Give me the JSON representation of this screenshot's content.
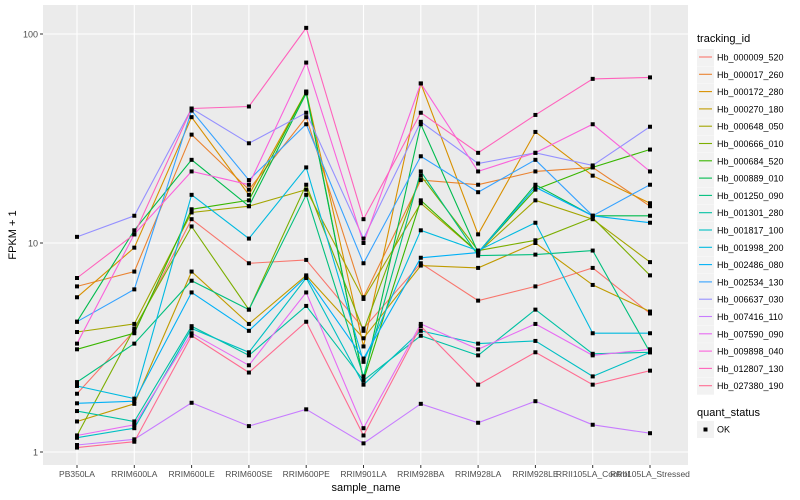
{
  "chart_data": {
    "type": "line",
    "xlabel": "sample_name",
    "ylabel": "FPKM + 1",
    "y_scale": "log10",
    "ylim": [
      0.97,
      130
    ],
    "y_ticks": [
      1,
      10,
      100
    ],
    "y_tick_labels": [
      "1",
      "10",
      "100"
    ],
    "grid": true,
    "legend_position": "right",
    "legend_title": "tracking_id",
    "point_legend_title": "quant_status",
    "point_legend_entries": [
      "OK"
    ],
    "point_color": "#000000",
    "panel_background": "#EBEBEB",
    "categories": [
      "PB350LA",
      "RRIM600LA",
      "RRIM600LE",
      "RRIM600SE",
      "RRIM600PE",
      "RRIM901LA",
      "RRIM928BA",
      "RRIM928LA",
      "RRIM928LE",
      "RRII105LA_Control",
      "RRII105LA_Stressed"
    ],
    "series": [
      {
        "name": "Hb_000009_520",
        "color": "#F8766D",
        "values": [
          1.9,
          3.8,
          13,
          8,
          8.3,
          3.9,
          8,
          5.3,
          6.2,
          7.6,
          4.6
        ]
      },
      {
        "name": "Hb_000017_260",
        "color": "#EA8331",
        "values": [
          6.2,
          7.3,
          33,
          18,
          40,
          5.5,
          20,
          19,
          22,
          23,
          15
        ]
      },
      {
        "name": "Hb_000172_280",
        "color": "#D89000",
        "values": [
          5.5,
          9.5,
          40,
          17,
          53,
          3.2,
          58,
          11,
          34,
          21,
          15.5
        ]
      },
      {
        "name": "Hb_000270_180",
        "color": "#C09B00",
        "values": [
          1.4,
          1.7,
          7.3,
          4.1,
          7,
          3.5,
          7.8,
          7.6,
          10,
          6.3,
          4.7
        ]
      },
      {
        "name": "Hb_000648_050",
        "color": "#A3A500",
        "values": [
          3.75,
          4.1,
          14,
          15,
          18,
          5.4,
          15.5,
          9,
          16,
          13,
          8.1
        ]
      },
      {
        "name": "Hb_000666_010",
        "color": "#7CAE00",
        "values": [
          1.2,
          3.9,
          12,
          4.8,
          19,
          3.8,
          21,
          9.2,
          10.3,
          13.2,
          7
        ]
      },
      {
        "name": "Hb_000684_520",
        "color": "#39B600",
        "values": [
          3.1,
          3.7,
          14.5,
          16,
          53,
          2.2,
          16,
          9,
          18,
          23,
          28
        ]
      },
      {
        "name": "Hb_000889_010",
        "color": "#00BB4E",
        "values": [
          4.2,
          11.5,
          25,
          15,
          52,
          2.2,
          37,
          9,
          19,
          13.5,
          13.5
        ]
      },
      {
        "name": "Hb_001250_090",
        "color": "#00BF7D",
        "values": [
          2.16,
          3.3,
          6.6,
          4.8,
          17,
          2.3,
          22,
          8.7,
          8.8,
          9.2,
          3
        ]
      },
      {
        "name": "Hb_001301_280",
        "color": "#00C1A3",
        "values": [
          1.57,
          1.4,
          4,
          2.9,
          5,
          2.2,
          3.6,
          2.9,
          4.8,
          2.95,
          3
        ]
      },
      {
        "name": "Hb_001817_100",
        "color": "#00BFC4",
        "values": [
          1.17,
          1.3,
          3.9,
          3,
          6.8,
          2.1,
          3.8,
          3.3,
          3.4,
          2.3,
          3
        ]
      },
      {
        "name": "Hb_001998_200",
        "color": "#00BAE0",
        "values": [
          2.07,
          1.8,
          17,
          10.5,
          23,
          2.7,
          11.5,
          9.2,
          12.5,
          3.7,
          3.7
        ]
      },
      {
        "name": "Hb_002486_080",
        "color": "#00B0F6",
        "values": [
          1.71,
          1.75,
          5.8,
          3.8,
          6.9,
          2.8,
          8.5,
          9,
          18.5,
          13.5,
          12.5
        ]
      },
      {
        "name": "Hb_002534_130",
        "color": "#35A2FF",
        "values": [
          4.2,
          6,
          43,
          20,
          37,
          8,
          26,
          17.5,
          25,
          13.5,
          19
        ]
      },
      {
        "name": "Hb_006637_030",
        "color": "#9590FF",
        "values": [
          10.7,
          13.5,
          44,
          30,
          42,
          10.5,
          38,
          24,
          27,
          23.5,
          36
        ]
      },
      {
        "name": "Hb_007416_110",
        "color": "#C77CFF",
        "values": [
          1.08,
          1.15,
          1.72,
          1.33,
          1.6,
          1.1,
          1.7,
          1.38,
          1.75,
          1.35,
          1.23
        ]
      },
      {
        "name": "Hb_007590_090",
        "color": "#E76BF3",
        "values": [
          1.2,
          1.35,
          3.7,
          2.6,
          5.8,
          1.3,
          4.1,
          3.1,
          4.1,
          2.9,
          3.1
        ]
      },
      {
        "name": "Hb_009898_040",
        "color": "#FA62DB",
        "values": [
          3.3,
          11,
          22,
          19,
          73,
          10,
          58,
          22,
          27,
          37,
          22
        ]
      },
      {
        "name": "Hb_012807_130",
        "color": "#FF62BC",
        "values": [
          6.8,
          11,
          44,
          45,
          107,
          13,
          42,
          27,
          41,
          61,
          62
        ]
      },
      {
        "name": "Hb_027380_190",
        "color": "#FF6C91",
        "values": [
          1.05,
          1.12,
          3.6,
          2.4,
          4.2,
          1.2,
          4,
          2.1,
          3,
          2.1,
          2.45
        ]
      }
    ]
  }
}
